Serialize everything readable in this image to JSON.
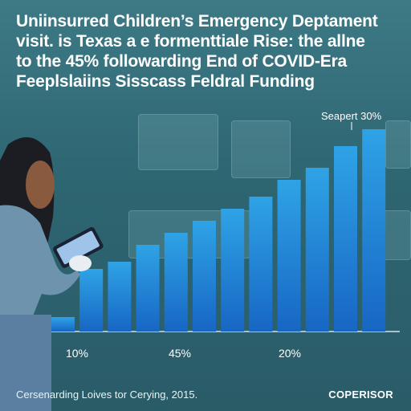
{
  "title_lines": [
    "Uniinsurred Children’s Emergency Deptament",
    "visit. is Texas a e formenttiale Rise: the allne",
    "to the 45% followarding End of COVID-Era",
    "Feeplslaiins Sisscass Feldral Funding"
  ],
  "callout": "Seapert 30%",
  "footer": "Cersenarding Loives tor Cerying, 2015.",
  "brand": "COPERISOR",
  "chart_data": {
    "type": "bar",
    "title": "",
    "xlabel": "",
    "ylabel": "",
    "tick_labels": [
      "10%",
      "45%",
      "20%"
    ],
    "values": [
      6,
      26,
      29,
      36,
      41,
      46,
      51,
      56,
      63,
      68,
      77,
      84
    ],
    "ylim": [
      0,
      100
    ],
    "grid": false,
    "annotations": [
      {
        "bar_index": 11,
        "text": "Seapert 30%"
      }
    ],
    "colors": {
      "bar_top": "#2fa3e6",
      "bar_bottom": "#1766c4",
      "accent": "#3aa9ee"
    }
  }
}
